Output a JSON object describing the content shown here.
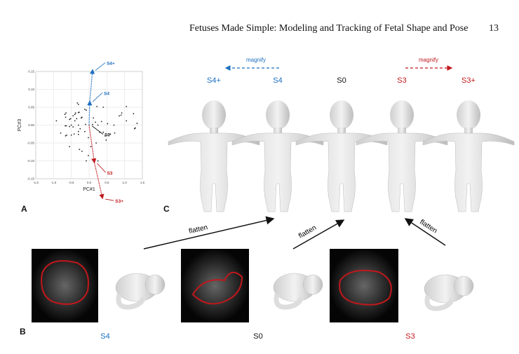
{
  "header": {
    "title": "Fetuses Made Simple: Modeling and Tracking of Fetal Shape and Pose",
    "page_number": "13"
  },
  "panels": {
    "a": "A",
    "b": "B",
    "c": "C"
  },
  "colors": {
    "blue": "#1a6fbf",
    "red": "#c0181c",
    "black": "#111111"
  },
  "chart_data": {
    "type": "scatter",
    "xlabel": "PC#1",
    "ylabel": "PC#3",
    "xlim": [
      -1.5,
      1.5
    ],
    "ylim": [
      -0.15,
      0.15
    ],
    "xticks": [
      "-1.5",
      "-1.0",
      "-0.5",
      "0.0",
      "0.5",
      "1.0",
      "1.5"
    ],
    "yticks": [
      "0.15",
      "0.10",
      "0.05",
      "0.00",
      "-0.05",
      "-0.10",
      "-0.15"
    ],
    "grid": true,
    "points": [
      [
        -0.92,
        0.012
      ],
      [
        -0.8,
        -0.022
      ],
      [
        -0.68,
        0.03
      ],
      [
        -0.66,
        0.022
      ],
      [
        -0.65,
        0.034
      ],
      [
        -0.67,
        -0.002
      ],
      [
        -0.64,
        -0.002
      ],
      [
        -0.66,
        -0.03
      ],
      [
        -0.63,
        -0.028
      ],
      [
        -0.55,
        0.016
      ],
      [
        -0.52,
        0.018
      ],
      [
        -0.55,
        -0.004
      ],
      [
        -0.5,
        0.0
      ],
      [
        -0.45,
        0.026
      ],
      [
        -0.4,
        0.03
      ],
      [
        -0.38,
        0.034
      ],
      [
        -0.33,
        0.062
      ],
      [
        -0.3,
        0.058
      ],
      [
        -0.3,
        0.035
      ],
      [
        -0.28,
        0.036
      ],
      [
        -0.35,
        0.018
      ],
      [
        -0.4,
        0.012
      ],
      [
        -0.3,
        0.0
      ],
      [
        -0.22,
        0.02
      ],
      [
        -0.25,
        -0.01
      ],
      [
        -0.2,
        0.022
      ],
      [
        -0.45,
        -0.005
      ],
      [
        -0.42,
        -0.025
      ],
      [
        -0.3,
        -0.018
      ],
      [
        -0.3,
        -0.026
      ],
      [
        -0.5,
        -0.028
      ],
      [
        -0.55,
        -0.06
      ],
      [
        -0.27,
        -0.068
      ],
      [
        -0.12,
        0.044
      ],
      [
        -0.08,
        0.042
      ],
      [
        -0.1,
        0.002
      ],
      [
        -0.12,
        -0.018
      ],
      [
        -0.2,
        -0.073
      ],
      [
        -0.08,
        -0.1
      ],
      [
        -0.02,
        -0.085
      ],
      [
        -0.02,
        -0.035
      ],
      [
        0.05,
        -0.06
      ],
      [
        0.1,
        0.002
      ],
      [
        0.12,
        0.02
      ],
      [
        0.18,
        0.008
      ],
      [
        0.22,
        0.052
      ],
      [
        0.25,
        0.0
      ],
      [
        0.3,
        -0.02
      ],
      [
        0.35,
        0.01
      ],
      [
        0.4,
        0.05
      ],
      [
        0.4,
        -0.02
      ],
      [
        0.45,
        -0.03
      ],
      [
        0.48,
        -0.042
      ],
      [
        0.52,
        0.004
      ],
      [
        0.6,
        -0.025
      ],
      [
        0.7,
        0.0
      ],
      [
        0.72,
        -0.022
      ],
      [
        0.85,
        0.026
      ],
      [
        0.9,
        0.028
      ],
      [
        0.92,
        0.034
      ],
      [
        1.05,
        0.052
      ],
      [
        1.05,
        0.012
      ],
      [
        1.25,
        0.032
      ],
      [
        1.28,
        -0.01
      ],
      [
        1.3,
        -0.008
      ],
      [
        1.35,
        0.005
      ],
      [
        0.2,
        -0.05
      ],
      [
        0.25,
        -0.1
      ]
    ],
    "trajectory": {
      "s0": [
        0,
        0
      ],
      "s4": [
        0.02,
        0.067
      ],
      "s4_plus": [
        0.1,
        0.155
      ],
      "s3": [
        0.15,
        -0.105
      ],
      "s3_plus": [
        0.38,
        -0.205
      ]
    },
    "annotations": {
      "s4_plus": "S4+",
      "s4": "S4",
      "s0": "S0",
      "s3": "S3",
      "s3_plus": "S3+"
    }
  },
  "panel_c": {
    "magnify_left": "magnify",
    "magnify_right": "magnify",
    "labels": [
      {
        "text": "S4+",
        "color": "blue"
      },
      {
        "text": "S4",
        "color": "blue"
      },
      {
        "text": "S0",
        "color": "black"
      },
      {
        "text": "S3",
        "color": "red"
      },
      {
        "text": "S3+",
        "color": "red"
      }
    ]
  },
  "flatten_labels": [
    "flatten",
    "flatten",
    "flatten"
  ],
  "panel_b": {
    "labels": [
      {
        "text": "S4",
        "color": "blue"
      },
      {
        "text": "S0",
        "color": "black"
      },
      {
        "text": "S3",
        "color": "red"
      }
    ]
  }
}
